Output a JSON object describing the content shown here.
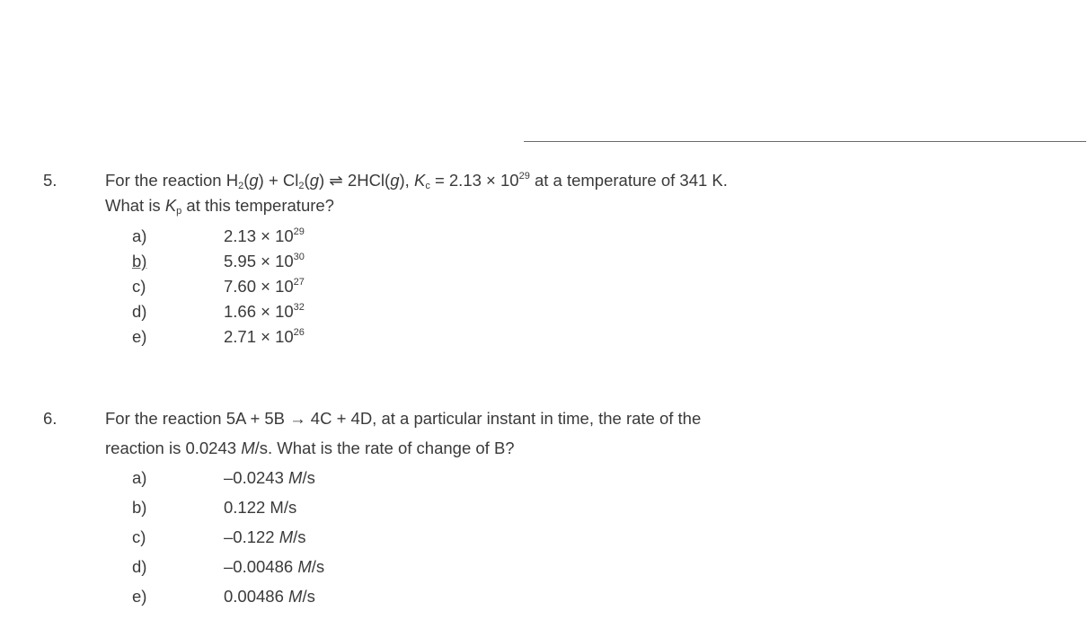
{
  "questions": [
    {
      "number": "5.",
      "lines": [
        [
          {
            "t": "For the reaction H"
          },
          {
            "t": "2",
            "s": "sub"
          },
          {
            "t": "("
          },
          {
            "t": "g",
            "s": "i"
          },
          {
            "t": ") + Cl"
          },
          {
            "t": "2",
            "s": "sub"
          },
          {
            "t": "("
          },
          {
            "t": "g",
            "s": "i"
          },
          {
            "t": ") ⇌ 2HCl("
          },
          {
            "t": "g",
            "s": "i"
          },
          {
            "t": "), "
          },
          {
            "t": "K",
            "s": "i"
          },
          {
            "t": "c",
            "s": "sub"
          },
          {
            "t": " = 2.13 × 10"
          },
          {
            "t": "29",
            "s": "sup"
          },
          {
            "t": " at a temperature of 341 K."
          }
        ],
        [
          {
            "t": "What is "
          },
          {
            "t": "K",
            "s": "i"
          },
          {
            "t": "p",
            "s": "sub"
          },
          {
            "t": " at this temperature?"
          }
        ]
      ],
      "options": [
        {
          "letter": "a)",
          "value": [
            {
              "t": "2.13 × 10"
            },
            {
              "t": "29",
              "s": "sup"
            }
          ]
        },
        {
          "letter": "b)",
          "marked": true,
          "value": [
            {
              "t": "5.95 × 10"
            },
            {
              "t": "30",
              "s": "sup"
            }
          ]
        },
        {
          "letter": "c)",
          "value": [
            {
              "t": "7.60 × 10"
            },
            {
              "t": "27",
              "s": "sup"
            }
          ]
        },
        {
          "letter": "d)",
          "value": [
            {
              "t": "1.66 × 10"
            },
            {
              "t": "32",
              "s": "sup"
            }
          ]
        },
        {
          "letter": "e)",
          "value": [
            {
              "t": "2.71 × 10"
            },
            {
              "t": "26",
              "s": "sup"
            }
          ]
        }
      ]
    },
    {
      "number": "6.",
      "lines": [
        [
          {
            "t": "For the reaction 5A + 5B → 4C + 4D, at a particular instant in time, the rate of the"
          }
        ],
        [
          {
            "t": "reaction is 0.0243 "
          },
          {
            "t": "M",
            "s": "i"
          },
          {
            "t": "/s. What is the rate of change of B?"
          }
        ]
      ],
      "options": [
        {
          "letter": "a)",
          "value": [
            {
              "t": "–0.0243 "
            },
            {
              "t": "M",
              "s": "i"
            },
            {
              "t": "/s"
            }
          ]
        },
        {
          "letter": "b)",
          "value": [
            {
              "t": "0.122 M/s"
            }
          ]
        },
        {
          "letter": "c)",
          "value": [
            {
              "t": "–0.122 "
            },
            {
              "t": "M",
              "s": "i"
            },
            {
              "t": "/s"
            }
          ]
        },
        {
          "letter": "d)",
          "value": [
            {
              "t": "–0.00486 "
            },
            {
              "t": "M",
              "s": "i"
            },
            {
              "t": "/s"
            }
          ]
        },
        {
          "letter": "e)",
          "value": [
            {
              "t": "0.00486 "
            },
            {
              "t": "M",
              "s": "i"
            },
            {
              "t": "/s"
            }
          ]
        }
      ]
    }
  ]
}
